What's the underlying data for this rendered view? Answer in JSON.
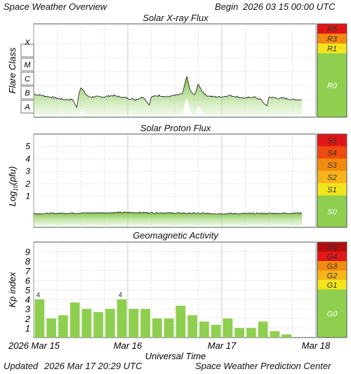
{
  "header": {
    "title": "Space Weather Overview",
    "begin_label": "Begin",
    "begin_value": "2026 03 15 00:00 UTC"
  },
  "footer": {
    "updated_label": "Updated",
    "updated_value": "2026 Mar 17 20:29 UTC",
    "source": "Space Weather Prediction Center"
  },
  "colors": {
    "green": "#8fcf4f",
    "yellow": "#f2e51d",
    "orange_light": "#f7b51a",
    "orange": "#f28a10",
    "red_orange": "#f04a0f",
    "red": "#e11616",
    "dark_red": "#b40d0d",
    "grid": "#cfcfcf"
  },
  "chart_data": [
    {
      "type": "line",
      "title": "Solar X-ray Flux",
      "ylabel": "Flare Class",
      "y_categories": [
        "A",
        "B",
        "C",
        "M",
        "X"
      ],
      "x_ticks": [
        "Mar 15",
        "Mar 16",
        "Mar 17",
        "Mar 18"
      ],
      "x_range": [
        "2026-03-15T00:00",
        "2026-03-18T00:00"
      ],
      "grid": true,
      "series": [
        {
          "x": [
            "2026-03-15T00:00",
            "2026-03-15T02:00",
            "2026-03-15T04:00",
            "2026-03-15T06:00",
            "2026-03-15T08:00",
            "2026-03-15T10:00",
            "2026-03-15T11:00",
            "2026-03-15T11:30",
            "2026-03-15T12:00",
            "2026-03-15T13:00",
            "2026-03-15T14:00",
            "2026-03-15T16:00",
            "2026-03-15T18:00",
            "2026-03-15T20:00",
            "2026-03-15T22:00",
            "2026-03-16T00:00",
            "2026-03-16T02:00",
            "2026-03-16T04:00",
            "2026-03-16T05:30",
            "2026-03-16T06:00",
            "2026-03-16T08:00",
            "2026-03-16T10:00",
            "2026-03-16T12:00",
            "2026-03-16T14:00",
            "2026-03-16T15:00",
            "2026-03-16T16:00",
            "2026-03-16T17:00",
            "2026-03-16T18:00",
            "2026-03-16T19:00",
            "2026-03-16T20:00",
            "2026-03-16T22:00",
            "2026-03-17T00:00",
            "2026-03-17T02:00",
            "2026-03-17T04:00",
            "2026-03-17T06:00",
            "2026-03-17T08:00",
            "2026-03-17T10:00",
            "2026-03-17T11:30",
            "2026-03-17T12:00",
            "2026-03-17T14:00",
            "2026-03-17T16:00",
            "2026-03-17T18:00",
            "2026-03-17T20:29"
          ],
          "values": [
            1.4,
            1.3,
            1.2,
            1.1,
            1.0,
            1.0,
            0.4,
            1.4,
            1.9,
            1.5,
            1.2,
            1.2,
            1.2,
            1.3,
            1.2,
            1.1,
            1.0,
            1.2,
            0.6,
            1.2,
            1.3,
            1.2,
            1.3,
            1.4,
            2.7,
            1.6,
            1.3,
            2.1,
            1.6,
            1.3,
            1.2,
            1.2,
            1.3,
            1.2,
            1.1,
            1.2,
            1.0,
            0.5,
            1.2,
            1.1,
            1.1,
            1.0,
            1.0
          ]
        }
      ],
      "scale_labels": [
        "R5",
        "R3",
        "R1",
        "R0"
      ]
    },
    {
      "type": "line",
      "title": "Solar Proton Flux",
      "ylabel": "Log10(pfu)",
      "ylabel_main": "Log",
      "ylabel_sub": "10",
      "ylabel_tail": "(pfu)",
      "y_ticks": [
        "1",
        "2",
        "3",
        "4",
        "5"
      ],
      "ylim": [
        -1.5,
        6
      ],
      "x_range": [
        "2026-03-15T00:00",
        "2026-03-18T00:00"
      ],
      "grid": true,
      "series": [
        {
          "x": [
            "2026-03-15T00:00",
            "2026-03-15T12:00",
            "2026-03-16T00:00",
            "2026-03-16T12:00",
            "2026-03-17T00:00",
            "2026-03-17T12:00",
            "2026-03-17T20:29"
          ],
          "values": [
            -0.4,
            -0.35,
            -0.3,
            -0.35,
            -0.4,
            -0.38,
            -0.35
          ]
        }
      ],
      "scale_labels": [
        "S5",
        "S4",
        "S3",
        "S2",
        "S1",
        "S0"
      ]
    },
    {
      "type": "bar",
      "title": "Geomagnetic Activity",
      "ylabel": "Kp index",
      "y_ticks": [
        "1",
        "2",
        "3",
        "4",
        "5",
        "6",
        "7",
        "8",
        "9"
      ],
      "ylim": [
        0,
        10
      ],
      "x_ticks": [
        "2026 Mar 15",
        "Mar 16",
        "Mar 17",
        "Mar 18"
      ],
      "xlabel": "Universal Time",
      "grid": true,
      "values": [
        4,
        2,
        2.33,
        3.67,
        3,
        2.67,
        3,
        4,
        3,
        3,
        2,
        2,
        3.33,
        2.33,
        1.67,
        1.33,
        2,
        1,
        1,
        1.67,
        0.67,
        0.33
      ],
      "data_labels": [
        "4",
        "",
        "",
        "",
        "",
        "",
        "",
        "4",
        "",
        "",
        "",
        "",
        "",
        "",
        "",
        "",
        "",
        "",
        "",
        "",
        "",
        ""
      ],
      "scale_labels": [
        "G5",
        "G4",
        "G3",
        "G2",
        "G1",
        "G0"
      ]
    }
  ]
}
